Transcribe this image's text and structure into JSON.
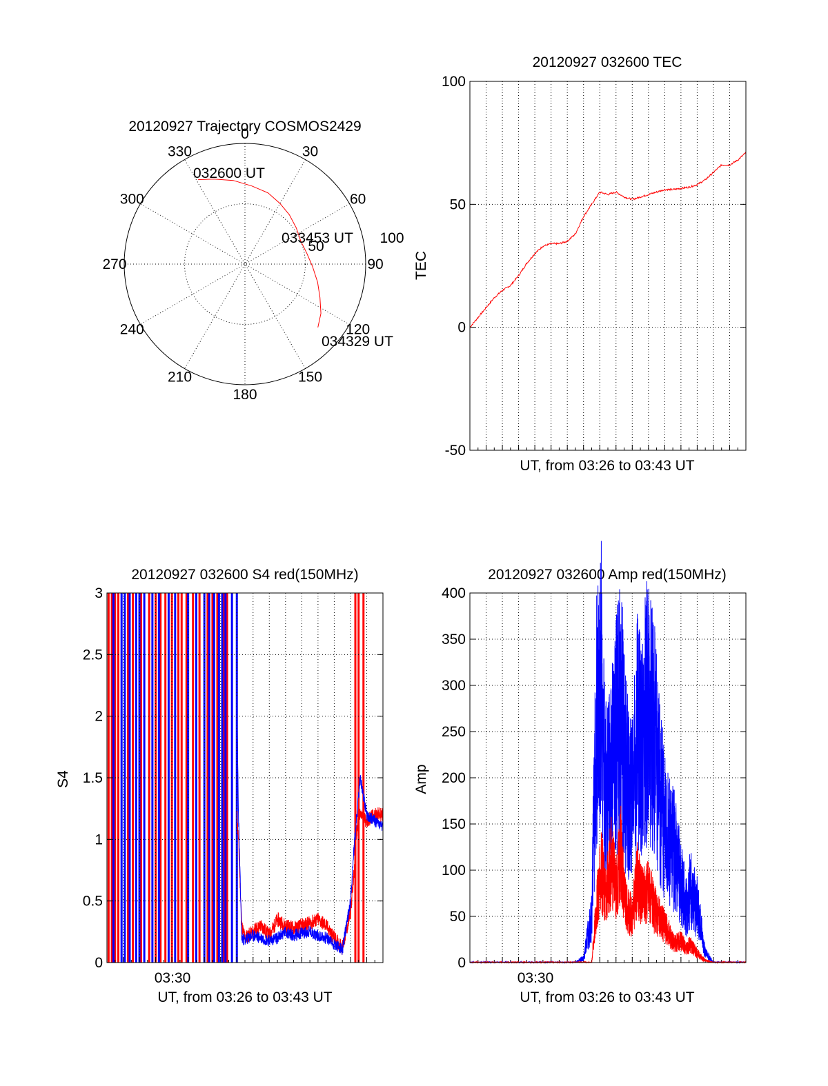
{
  "colors": {
    "red": "#ff0000",
    "blue": "#0000ff",
    "axis": "#000000",
    "background": "#ffffff"
  },
  "chart_data": [
    {
      "type": "scatter",
      "subtype": "polar",
      "title": "20120927 Trajectory COSMOS2429",
      "angle_labels": [
        "0",
        "30",
        "60",
        "90",
        "120",
        "150",
        "180",
        "210",
        "240",
        "270",
        "300",
        "330"
      ],
      "radius_labels": [
        "50",
        "100"
      ],
      "radius_range": [
        0,
        100
      ],
      "grid": true,
      "annotations": [
        "032600 UT",
        "033453 UT",
        "034329 UT"
      ],
      "series": [
        {
          "color": "#ff0000",
          "azimuth_elevation": [
            [
              331,
              20
            ],
            [
              340,
              25
            ],
            [
              352,
              30
            ],
            [
              5,
              35
            ],
            [
              18,
              38
            ],
            [
              30,
              42
            ],
            [
              42,
              45
            ],
            [
              55,
              48
            ],
            [
              68,
              50
            ],
            [
              80,
              48
            ],
            [
              92,
              44
            ],
            [
              104,
              38
            ],
            [
              114,
              32
            ],
            [
              123,
              25
            ],
            [
              131,
              20
            ]
          ]
        }
      ]
    },
    {
      "type": "line",
      "title": "20120927 032600 TEC",
      "xlabel": "UT, from 03:26 to 03:43 UT",
      "ylabel": "TEC",
      "ylim": [
        -50,
        100
      ],
      "yticks": [
        -50,
        0,
        50,
        100
      ],
      "xlim_minutes": [
        0,
        17
      ],
      "grid": true,
      "series": [
        {
          "color": "#ff0000",
          "x_min": [
            0,
            0.5,
            1,
            1.5,
            2,
            2.5,
            3,
            3.5,
            4,
            4.5,
            5,
            5.5,
            6,
            6.5,
            7,
            7.5,
            8,
            8.5,
            9,
            9.5,
            10,
            10.5,
            11,
            11.5,
            12,
            12.5,
            13,
            13.5,
            14,
            14.5,
            15,
            15.5,
            16,
            16.5,
            17
          ],
          "values": [
            0,
            4,
            8,
            12,
            15,
            17,
            21,
            26,
            30,
            33,
            34,
            34,
            35,
            38,
            45,
            50,
            55,
            54,
            55,
            53,
            52,
            53,
            54,
            55,
            56,
            56,
            56.5,
            57,
            58,
            60,
            63,
            66,
            66,
            68,
            71
          ]
        }
      ]
    },
    {
      "type": "line",
      "title": "20120927 032600 S4 red(150MHz)",
      "xlabel": "UT, from 03:26 to 03:43 UT",
      "ylabel": "S4",
      "ylim": [
        0,
        3
      ],
      "yticks": [
        0,
        0.5,
        1,
        1.5,
        2,
        2.5,
        3
      ],
      "yticklabels": [
        "0",
        "0.5",
        "1",
        "1.5",
        "2",
        "2.5",
        "3"
      ],
      "xlim_minutes": [
        0,
        17
      ],
      "xticklabels": [
        "03:30"
      ],
      "grid": true,
      "saturated_red_spikes_min": [
        0.1,
        0.3,
        0.5,
        0.7,
        1.3,
        1.6,
        2.1,
        2.6,
        3.0,
        3.3,
        3.6,
        4.0,
        4.4,
        4.6,
        4.9,
        5.3,
        5.7,
        6.2,
        6.5,
        6.8,
        7.2,
        7.4,
        15.3,
        15.5,
        15.8
      ],
      "saturated_blue_spikes_min": [
        0.4,
        0.9,
        1.1,
        1.4,
        1.8,
        2.0,
        2.3,
        2.8,
        3.2,
        3.8,
        4.2,
        5.0,
        5.5,
        6.0,
        6.3,
        6.6,
        6.9,
        7.1,
        7.3,
        7.7,
        8.0
      ],
      "series": [
        {
          "name": "red",
          "color": "#ff0000",
          "x_min": [
            8.0,
            8.1,
            8.3,
            8.5,
            9,
            9.5,
            10,
            10.5,
            11,
            11.5,
            12,
            12.5,
            13,
            13.5,
            14,
            14.5,
            15,
            15.2,
            15.4,
            15.6,
            16,
            16.5,
            17
          ],
          "values": [
            1.2,
            1.0,
            0.3,
            0.2,
            0.25,
            0.3,
            0.22,
            0.35,
            0.3,
            0.28,
            0.3,
            0.32,
            0.35,
            0.3,
            0.2,
            0.12,
            0.4,
            0.7,
            1.1,
            1.2,
            1.15,
            1.2,
            1.2
          ]
        },
        {
          "name": "blue",
          "color": "#0000ff",
          "x_min": [
            8.0,
            8.1,
            8.3,
            8.5,
            9,
            9.5,
            10,
            10.5,
            11,
            11.5,
            12,
            12.5,
            13,
            13.5,
            14,
            14.5,
            15,
            15.2,
            15.4,
            15.6,
            16,
            16.5,
            17
          ],
          "values": [
            2.2,
            1.2,
            0.2,
            0.18,
            0.22,
            0.2,
            0.18,
            0.2,
            0.25,
            0.22,
            0.24,
            0.25,
            0.22,
            0.2,
            0.15,
            0.1,
            0.5,
            0.9,
            1.2,
            1.5,
            1.2,
            1.15,
            1.1
          ]
        }
      ]
    },
    {
      "type": "line",
      "title": "20120927 032600 Amp red(150MHz)",
      "xlabel": "UT, from 03:26 to 03:43 UT",
      "ylabel": "Amp",
      "ylim": [
        0,
        400
      ],
      "yticks": [
        0,
        50,
        100,
        150,
        200,
        250,
        300,
        350,
        400
      ],
      "xlim_minutes": [
        0,
        17
      ],
      "xticklabels": [
        "03:30"
      ],
      "grid": true,
      "series": [
        {
          "name": "blue",
          "color": "#0000ff",
          "x_min": [
            0,
            6.5,
            6.7,
            7,
            7.5,
            7.8,
            8.1,
            8.2,
            8.5,
            9,
            9.3,
            9.6,
            10,
            10.3,
            10.6,
            11,
            11.3,
            11.6,
            12,
            12.3,
            12.6,
            13,
            13.3,
            13.6,
            14,
            14.5,
            15,
            17
          ],
          "values": [
            0,
            0,
            2,
            5,
            50,
            270,
            300,
            220,
            180,
            240,
            280,
            200,
            170,
            250,
            230,
            280,
            250,
            200,
            150,
            130,
            120,
            90,
            60,
            80,
            60,
            10,
            0,
            0
          ]
        },
        {
          "name": "red",
          "color": "#ff0000",
          "x_min": [
            0,
            7.5,
            7.8,
            8.1,
            8.4,
            8.7,
            9,
            9.3,
            9.6,
            10,
            10.3,
            10.6,
            11,
            11.3,
            11.6,
            12,
            12.3,
            12.6,
            13,
            13.3,
            13.6,
            14,
            14.5,
            15,
            17
          ],
          "values": [
            0,
            0,
            60,
            100,
            70,
            110,
            80,
            120,
            60,
            50,
            90,
            70,
            80,
            60,
            50,
            40,
            30,
            20,
            25,
            15,
            20,
            10,
            2,
            0,
            0
          ]
        }
      ]
    }
  ]
}
